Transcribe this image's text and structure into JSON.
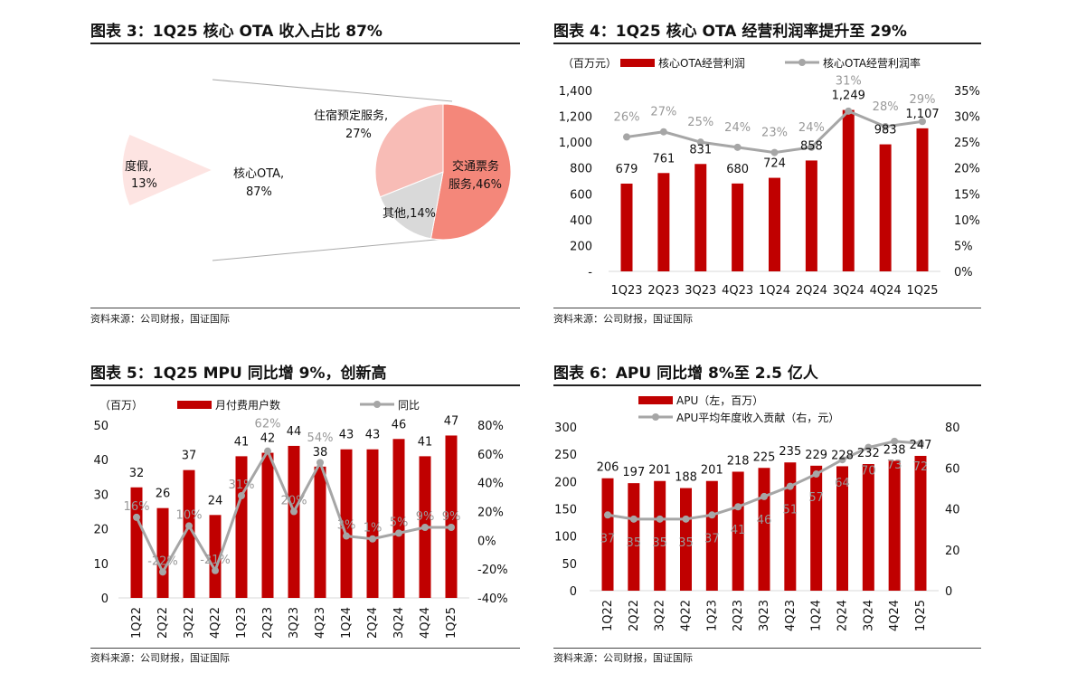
{
  "source": "资料来源：公司财报，国证国际",
  "colors": {
    "bar": "#c00000",
    "line": "#a6a6a6",
    "ota": "#c00000",
    "vacation": "#fde4e2",
    "transport": "#f4877a",
    "accommodation": "#f8bcb6",
    "other": "#d9d9d9"
  },
  "chart_data": [
    {
      "type": "pie",
      "title": "图表 3：1Q25 核心 OTA 收入占比 87%",
      "slices": [
        {
          "label": "核心OTA,",
          "pct": "87%",
          "value": 87
        },
        {
          "label": "度假,",
          "pct": "13%",
          "value": 13
        }
      ],
      "breakdown": [
        {
          "label": "交通票务",
          "label2": "服务,46%",
          "value": 46
        },
        {
          "label": "其他,14%",
          "value": 14
        },
        {
          "label": "住宿预定服务,",
          "label2": "27%",
          "value": 27
        }
      ]
    },
    {
      "type": "bar+line",
      "title": "图表 4：1Q25 核心 OTA 经营利润率提升至 29%",
      "unit": "（百万元）",
      "categories": [
        "1Q23",
        "2Q23",
        "3Q23",
        "4Q23",
        "1Q24",
        "2Q24",
        "3Q24",
        "4Q24",
        "1Q25"
      ],
      "series": [
        {
          "name": "核心OTA经营利润",
          "values": [
            679,
            761,
            831,
            680,
            724,
            858,
            1249,
            983,
            1107
          ],
          "labels": [
            "679",
            "761",
            "831",
            "680",
            "724",
            "858",
            "1,249",
            "983",
            "1,107"
          ]
        },
        {
          "name": "核心OTA经营利润率",
          "values": [
            26,
            27,
            25,
            24,
            23,
            24,
            31,
            28,
            29
          ],
          "labels": [
            "26%",
            "27%",
            "25%",
            "24%",
            "23%",
            "24%",
            "31%",
            "28%",
            "29%"
          ]
        }
      ],
      "yleft": {
        "range": [
          0,
          1400
        ],
        "ticks": [
          "-",
          "200",
          "400",
          "600",
          "800",
          "1,000",
          "1,200",
          "1,400"
        ]
      },
      "yright": {
        "range": [
          0,
          35
        ],
        "ticks": [
          "0%",
          "5%",
          "10%",
          "15%",
          "20%",
          "25%",
          "30%",
          "35%"
        ]
      }
    },
    {
      "type": "bar+line",
      "title": "图表 5：1Q25 MPU 同比增 9%，创新高",
      "unit": "（百万）",
      "categories": [
        "1Q22",
        "2Q22",
        "3Q22",
        "4Q22",
        "1Q23",
        "2Q23",
        "3Q23",
        "4Q23",
        "1Q24",
        "2Q24",
        "3Q24",
        "4Q24",
        "1Q25"
      ],
      "series": [
        {
          "name": "月付费用户数",
          "values": [
            32,
            26,
            37,
            24,
            41,
            42,
            44,
            38,
            43,
            43,
            46,
            41,
            47
          ],
          "labels": [
            "32",
            "26",
            "37",
            "24",
            "41",
            "42",
            "44",
            "38",
            "43",
            "43",
            "46",
            "41",
            "47"
          ]
        },
        {
          "name": "同比",
          "values": [
            16,
            -22,
            10,
            -21,
            31,
            62,
            20,
            54,
            3,
            1,
            5,
            9,
            9
          ],
          "labels": [
            "16%",
            "-22%",
            "10%",
            "-21%",
            "31%",
            "62%",
            "20%",
            "54%",
            "3%",
            "1%",
            "5%",
            "9%",
            "9%"
          ]
        }
      ],
      "yleft": {
        "range": [
          0,
          50
        ],
        "ticks": [
          "0",
          "10",
          "20",
          "30",
          "40",
          "50"
        ]
      },
      "yright": {
        "range": [
          -40,
          80
        ],
        "ticks": [
          "-40%",
          "-20%",
          "0%",
          "20%",
          "40%",
          "60%",
          "80%"
        ]
      }
    },
    {
      "type": "bar+line",
      "title": "图表 6：APU 同比增 8%至 2.5 亿人",
      "unit": "",
      "categories": [
        "1Q22",
        "2Q22",
        "3Q22",
        "4Q22",
        "1Q23",
        "2Q23",
        "3Q23",
        "4Q23",
        "1Q24",
        "2Q24",
        "3Q24",
        "4Q24",
        "1Q25"
      ],
      "series": [
        {
          "name": "APU（左，百万）",
          "values": [
            206,
            197,
            201,
            188,
            201,
            218,
            225,
            235,
            229,
            228,
            232,
            238,
            247
          ],
          "labels": [
            "206",
            "197",
            "201",
            "188",
            "201",
            "218",
            "225",
            "235",
            "229",
            "228",
            "232",
            "238",
            "247"
          ]
        },
        {
          "name": "APU平均年度收入贡献（右，元）",
          "values": [
            37,
            35,
            35,
            35,
            37,
            41,
            46,
            51,
            57,
            64,
            70,
            73,
            72
          ],
          "labels": [
            "37",
            "35",
            "35",
            "35",
            "37",
            "41",
            "46",
            "51",
            "57",
            "64",
            "70",
            "73",
            "72"
          ]
        }
      ],
      "yleft": {
        "range": [
          0,
          300
        ],
        "ticks": [
          "0",
          "50",
          "100",
          "150",
          "200",
          "250",
          "300"
        ]
      },
      "yright": {
        "range": [
          0,
          80
        ],
        "ticks": [
          "0",
          "20",
          "40",
          "60",
          "80"
        ]
      }
    }
  ]
}
